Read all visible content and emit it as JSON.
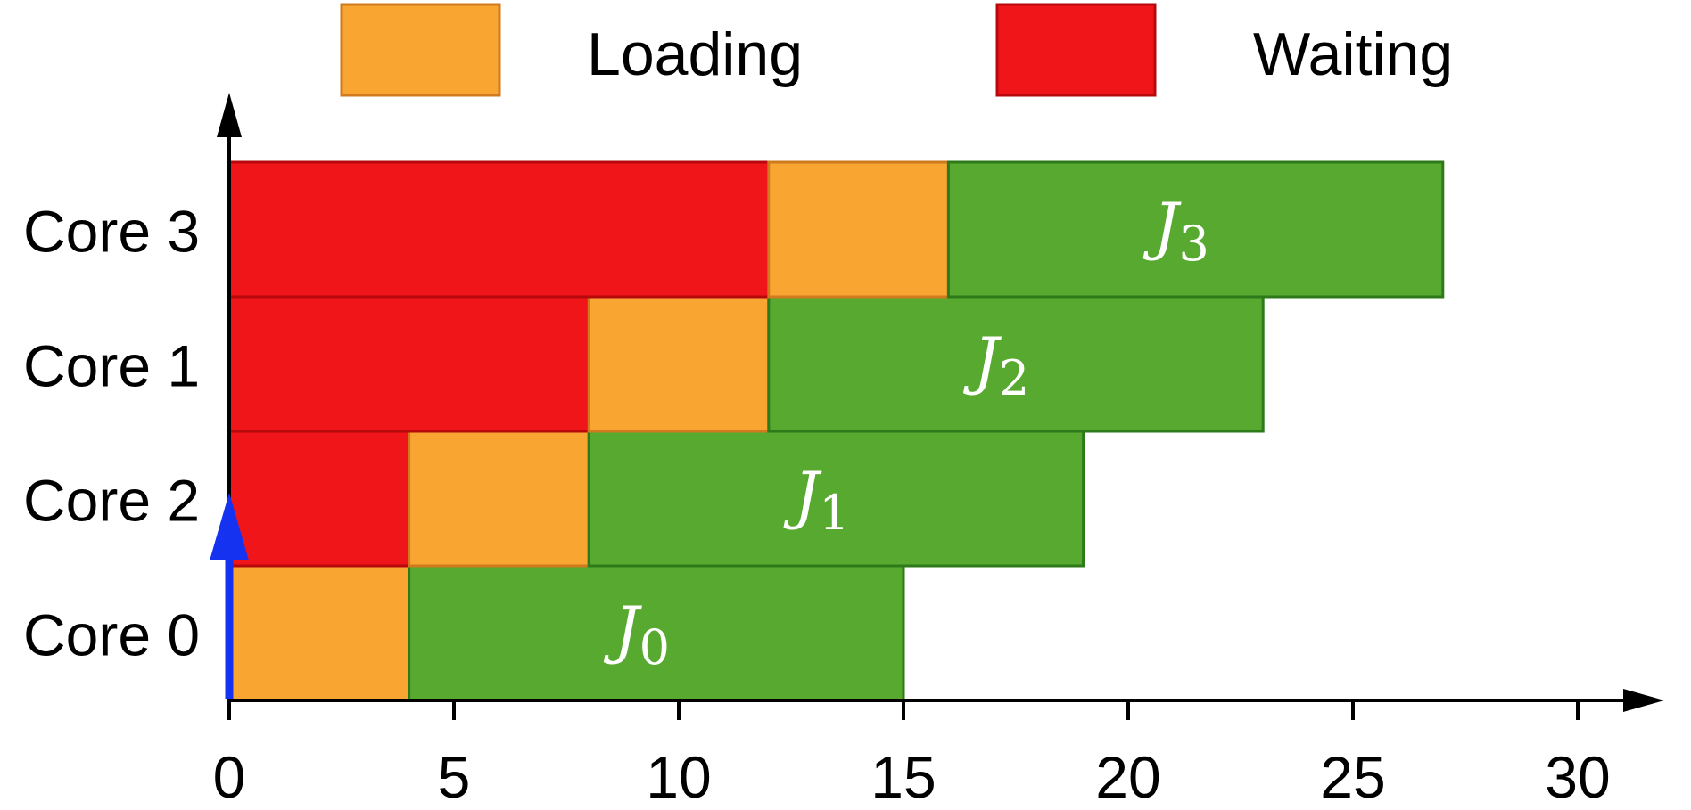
{
  "chart_data": {
    "type": "gantt",
    "title": "",
    "xlabel": "",
    "ylabel": "",
    "xlim": [
      0,
      30
    ],
    "x_ticks": [
      0,
      5,
      10,
      15,
      20,
      25,
      30
    ],
    "grid": false,
    "legend": {
      "placement": "top",
      "entries": [
        {
          "key": "loading",
          "label": "Loading",
          "color": "#F8A532",
          "border": "#D07A1E"
        },
        {
          "key": "waiting",
          "label": "Waiting",
          "color": "#F01518",
          "border": "#B7080C"
        }
      ]
    },
    "colors": {
      "running": "#58A92F",
      "running_border": "#2E7A1A",
      "arrow": "#1432F0",
      "axis": "#000000"
    },
    "rows": [
      {
        "label": "Core 0",
        "segments": [
          {
            "kind": "loading",
            "start": 0,
            "end": 4
          },
          {
            "kind": "running",
            "start": 4,
            "end": 15,
            "job": "J",
            "sub": "0"
          }
        ]
      },
      {
        "label": "Core 2",
        "segments": [
          {
            "kind": "waiting",
            "start": 0,
            "end": 4
          },
          {
            "kind": "loading",
            "start": 4,
            "end": 8
          },
          {
            "kind": "running",
            "start": 8,
            "end": 19,
            "job": "J",
            "sub": "1"
          }
        ]
      },
      {
        "label": "Core 1",
        "segments": [
          {
            "kind": "waiting",
            "start": 0,
            "end": 8
          },
          {
            "kind": "loading",
            "start": 8,
            "end": 12
          },
          {
            "kind": "running",
            "start": 12,
            "end": 23,
            "job": "J",
            "sub": "2"
          }
        ]
      },
      {
        "label": "Core 3",
        "segments": [
          {
            "kind": "waiting",
            "start": 0,
            "end": 12
          },
          {
            "kind": "loading",
            "start": 12,
            "end": 16
          },
          {
            "kind": "running",
            "start": 16,
            "end": 27,
            "job": "J",
            "sub": "3"
          }
        ]
      }
    ],
    "marker": {
      "x": 0,
      "from_row": 0,
      "to_row": 1
    }
  }
}
